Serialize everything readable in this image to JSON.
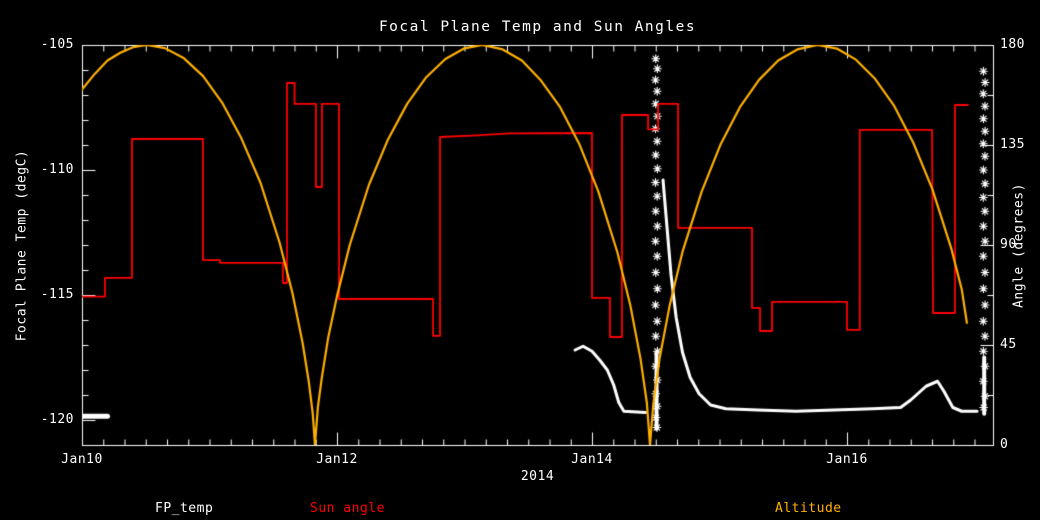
{
  "title": "Focal Plane Temp and Sun Angles",
  "colors": {
    "background": "#000000",
    "frame": "#ffffff",
    "fp_temp": "#ffffff",
    "sun_angle": "#ff0000",
    "altitude": "#ffb000"
  },
  "legend": [
    {
      "label": "FP_temp",
      "color": "#ffffff"
    },
    {
      "label": "Sun angle",
      "color": "#ff0000"
    },
    {
      "label": "Altitude",
      "color": "#ffb000"
    }
  ],
  "x_axis": {
    "year_label": "2014",
    "tick_labels": [
      "Jan10",
      "Jan12",
      "Jan14",
      "Jan16"
    ],
    "tick_days": [
      0,
      2,
      4,
      6
    ],
    "range_days": [
      0,
      7.145
    ],
    "minor_step_days": 0.16667
  },
  "y_left": {
    "label": "Focal Plane Temp (degC)",
    "tick_labels": [
      "-105",
      "-110",
      "-115",
      "-120"
    ],
    "tick_values": [
      -105,
      -110,
      -115,
      -120
    ],
    "range": [
      -121,
      -105
    ],
    "minor_step": 1
  },
  "y_right": {
    "label": "Angle (degrees)",
    "tick_labels": [
      "180",
      "135",
      "90",
      "45",
      "0"
    ],
    "tick_values": [
      180,
      135,
      90,
      45,
      0
    ],
    "range": [
      0,
      180
    ],
    "minor_step": 22.5
  },
  "chart_data": {
    "type": "line",
    "title": "Focal Plane Temp and Sun Angles",
    "xlabel": "2014",
    "x_unit": "days since Jan10 2014",
    "grid": false,
    "legend_position": "bottom",
    "series": [
      {
        "name": "FP_temp",
        "axis": "left",
        "type": "line_with_asterisk_scatter",
        "color": "#ffffff",
        "segments": [
          {
            "width": 5,
            "points": [
              [
                0.0,
                -119.85
              ],
              [
                0.2,
                -119.85
              ]
            ]
          },
          {
            "width": 3,
            "points": [
              [
                3.867,
                -117.2
              ],
              [
                3.93,
                -117.05
              ],
              [
                4.0,
                -117.25
              ],
              [
                4.06,
                -117.6
              ],
              [
                4.12,
                -118.0
              ],
              [
                4.17,
                -118.6
              ],
              [
                4.21,
                -119.3
              ],
              [
                4.25,
                -119.65
              ],
              [
                4.42,
                -119.7
              ]
            ]
          },
          {
            "width": 4,
            "points": [
              [
                4.506,
                -117.3
              ],
              [
                4.506,
                -120.35
              ]
            ]
          },
          {
            "width": 3,
            "points": [
              [
                4.557,
                -110.4
              ],
              [
                4.59,
                -112.4
              ],
              [
                4.62,
                -114.2
              ],
              [
                4.66,
                -115.9
              ],
              [
                4.71,
                -117.3
              ],
              [
                4.77,
                -118.3
              ],
              [
                4.84,
                -118.95
              ],
              [
                4.93,
                -119.4
              ],
              [
                5.05,
                -119.55
              ],
              [
                5.3,
                -119.6
              ],
              [
                5.6,
                -119.65
              ],
              [
                5.9,
                -119.6
              ],
              [
                6.2,
                -119.55
              ],
              [
                6.42,
                -119.5
              ],
              [
                6.5,
                -119.2
              ],
              [
                6.62,
                -118.65
              ],
              [
                6.71,
                -118.45
              ],
              [
                6.76,
                -118.85
              ],
              [
                6.83,
                -119.5
              ],
              [
                6.9,
                -119.65
              ],
              [
                7.02,
                -119.65
              ]
            ]
          },
          {
            "width": 4,
            "points": [
              [
                7.076,
                -117.5
              ],
              [
                7.076,
                -119.75
              ]
            ]
          }
        ],
        "scatter_marker": "asterisk",
        "scatter": [
          [
            4.5,
            -105.55
          ],
          [
            4.513,
            -105.95
          ],
          [
            4.498,
            -106.4
          ],
          [
            4.511,
            -106.85
          ],
          [
            4.5,
            -107.35
          ],
          [
            4.513,
            -107.85
          ],
          [
            4.498,
            -108.35
          ],
          [
            4.511,
            -108.85
          ],
          [
            4.5,
            -109.4
          ],
          [
            4.513,
            -109.95
          ],
          [
            4.498,
            -110.5
          ],
          [
            4.511,
            -111.05
          ],
          [
            4.5,
            -111.65
          ],
          [
            4.513,
            -112.25
          ],
          [
            4.498,
            -112.85
          ],
          [
            4.511,
            -113.45
          ],
          [
            4.5,
            -114.1
          ],
          [
            4.513,
            -114.75
          ],
          [
            4.498,
            -115.4
          ],
          [
            4.511,
            -116.05
          ],
          [
            4.5,
            -116.65
          ],
          [
            4.513,
            -117.25
          ],
          [
            4.499,
            -117.85
          ],
          [
            4.512,
            -118.4
          ],
          [
            4.5,
            -118.95
          ],
          [
            4.511,
            -119.45
          ],
          [
            4.503,
            -119.9
          ],
          [
            4.509,
            -120.3
          ],
          [
            7.07,
            -106.05
          ],
          [
            7.083,
            -106.5
          ],
          [
            7.069,
            -106.95
          ],
          [
            7.082,
            -107.45
          ],
          [
            7.07,
            -107.95
          ],
          [
            7.083,
            -108.45
          ],
          [
            7.069,
            -108.95
          ],
          [
            7.082,
            -109.45
          ],
          [
            7.07,
            -110.0
          ],
          [
            7.083,
            -110.55
          ],
          [
            7.069,
            -111.1
          ],
          [
            7.082,
            -111.65
          ],
          [
            7.07,
            -112.25
          ],
          [
            7.083,
            -112.85
          ],
          [
            7.069,
            -113.45
          ],
          [
            7.082,
            -114.1
          ],
          [
            7.07,
            -114.75
          ],
          [
            7.083,
            -115.4
          ],
          [
            7.069,
            -116.05
          ],
          [
            7.082,
            -116.65
          ],
          [
            7.07,
            -117.25
          ],
          [
            7.083,
            -117.85
          ],
          [
            7.069,
            -118.45
          ],
          [
            7.082,
            -119.05
          ],
          [
            7.072,
            -119.5
          ]
        ]
      },
      {
        "name": "Sun angle",
        "axis": "right",
        "type": "step_line",
        "color": "#ff0000",
        "width": 1.8,
        "points": [
          [
            0.0,
            66.8
          ],
          [
            0.18,
            66.8
          ],
          [
            0.18,
            75.2
          ],
          [
            0.392,
            75.2
          ],
          [
            0.392,
            137.7
          ],
          [
            0.949,
            137.7
          ],
          [
            0.949,
            83.2
          ],
          [
            1.082,
            83.2
          ],
          [
            1.082,
            82.0
          ],
          [
            1.576,
            82.0
          ],
          [
            1.576,
            72.9
          ],
          [
            1.608,
            72.9
          ],
          [
            1.608,
            162.9
          ],
          [
            1.667,
            162.9
          ],
          [
            1.667,
            153.5
          ],
          [
            1.835,
            153.5
          ],
          [
            1.835,
            116.1
          ],
          [
            1.882,
            116.1
          ],
          [
            1.882,
            153.5
          ],
          [
            2.016,
            153.5
          ],
          [
            2.016,
            65.7
          ],
          [
            2.753,
            65.7
          ],
          [
            2.753,
            49.1
          ],
          [
            2.808,
            49.1
          ],
          [
            2.808,
            138.6
          ],
          [
            3.1,
            139.3
          ],
          [
            3.35,
            140.2
          ],
          [
            4.0,
            140.4
          ],
          [
            4.0,
            66.2
          ],
          [
            4.141,
            66.2
          ],
          [
            4.141,
            48.6
          ],
          [
            4.235,
            48.6
          ],
          [
            4.235,
            148.5
          ],
          [
            4.44,
            148.5
          ],
          [
            4.44,
            142.0
          ],
          [
            4.518,
            142.0
          ],
          [
            4.518,
            153.5
          ],
          [
            4.675,
            153.5
          ],
          [
            4.675,
            97.7
          ],
          [
            5.255,
            97.7
          ],
          [
            5.255,
            61.7
          ],
          [
            5.318,
            61.7
          ],
          [
            5.318,
            51.3
          ],
          [
            5.412,
            51.3
          ],
          [
            5.412,
            64.4
          ],
          [
            6.0,
            64.4
          ],
          [
            6.0,
            51.8
          ],
          [
            6.1,
            51.8
          ],
          [
            6.1,
            141.8
          ],
          [
            6.667,
            141.8
          ],
          [
            6.675,
            59.4
          ],
          [
            6.847,
            59.4
          ],
          [
            6.847,
            153.0
          ],
          [
            6.949,
            153.0
          ]
        ]
      },
      {
        "name": "Altitude",
        "axis": "right",
        "type": "line",
        "color": "#ffb000",
        "width": 2.2,
        "points": [
          [
            0.0,
            160.0
          ],
          [
            0.1,
            167.0
          ],
          [
            0.2,
            173.0
          ],
          [
            0.3,
            176.5
          ],
          [
            0.4,
            179.0
          ],
          [
            0.51,
            180.0
          ],
          [
            0.65,
            178.6
          ],
          [
            0.8,
            174.0
          ],
          [
            0.95,
            166.0
          ],
          [
            1.1,
            154.0
          ],
          [
            1.25,
            138.0
          ],
          [
            1.4,
            118.0
          ],
          [
            1.55,
            91.0
          ],
          [
            1.65,
            68.5
          ],
          [
            1.73,
            46.0
          ],
          [
            1.78,
            28.0
          ],
          [
            1.81,
            14.0
          ],
          [
            1.827,
            0.0
          ],
          [
            1.85,
            17.0
          ],
          [
            1.88,
            30.0
          ],
          [
            1.93,
            48.0
          ],
          [
            2.0,
            67.0
          ],
          [
            2.1,
            90.0
          ],
          [
            2.25,
            117.0
          ],
          [
            2.4,
            137.5
          ],
          [
            2.55,
            153.5
          ],
          [
            2.7,
            165.5
          ],
          [
            2.85,
            173.7
          ],
          [
            3.0,
            178.5
          ],
          [
            3.14,
            180.0
          ],
          [
            3.3,
            178.0
          ],
          [
            3.45,
            173.0
          ],
          [
            3.6,
            164.0
          ],
          [
            3.75,
            152.0
          ],
          [
            3.9,
            135.5
          ],
          [
            4.05,
            114.0
          ],
          [
            4.2,
            86.5
          ],
          [
            4.3,
            63.0
          ],
          [
            4.38,
            39.0
          ],
          [
            4.43,
            19.0
          ],
          [
            4.455,
            0.0
          ],
          [
            4.48,
            18.0
          ],
          [
            4.53,
            39.0
          ],
          [
            4.61,
            63.0
          ],
          [
            4.71,
            87.0
          ],
          [
            4.86,
            114.0
          ],
          [
            5.01,
            135.5
          ],
          [
            5.16,
            152.0
          ],
          [
            5.31,
            164.3
          ],
          [
            5.46,
            173.0
          ],
          [
            5.61,
            178.0
          ],
          [
            5.77,
            180.0
          ],
          [
            5.92,
            178.4
          ],
          [
            6.07,
            173.4
          ],
          [
            6.22,
            164.8
          ],
          [
            6.37,
            152.6
          ],
          [
            6.52,
            136.0
          ],
          [
            6.67,
            115.0
          ],
          [
            6.82,
            88.0
          ],
          [
            6.9,
            70.0
          ],
          [
            6.94,
            55.0
          ]
        ]
      }
    ]
  }
}
